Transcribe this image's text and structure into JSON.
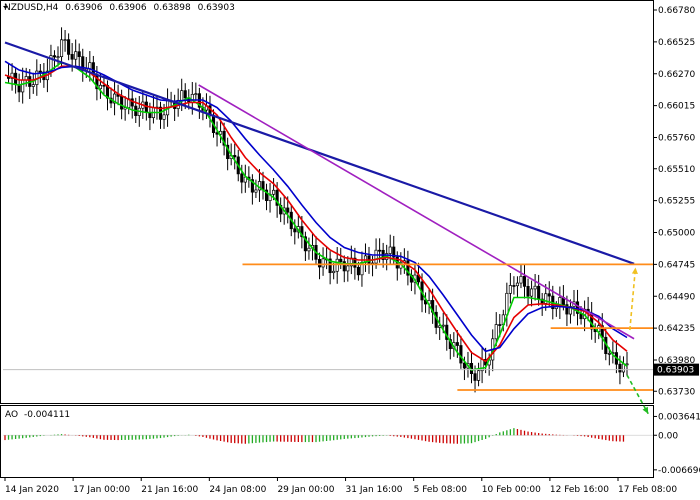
{
  "header": {
    "symbol_tf": "NZDUSD,H4",
    "open": "0.63906",
    "high": "0.63906",
    "low": "0.63898",
    "close": "0.63903"
  },
  "ao_header": {
    "name": "AO",
    "value": "-0.004111"
  },
  "chart_data": [
    {
      "type": "candlestick",
      "title": "NZDUSD,H4",
      "x_ticks": [
        "14 Jan 2020",
        "17 Jan 00:00",
        "21 Jan 16:00",
        "24 Jan 08:00",
        "29 Jan 00:00",
        "31 Jan 16:00",
        "5 Feb 08:00",
        "10 Feb 00:00",
        "12 Feb 16:00",
        "17 Feb 08:00"
      ],
      "y_ticks": [
        "0.66780",
        "0.66525",
        "0.66270",
        "0.66015",
        "0.65760",
        "0.65510",
        "0.65255",
        "0.65000",
        "0.64745",
        "0.64490",
        "0.64235",
        "0.63980",
        "0.63730"
      ],
      "ylim": [
        0.6366,
        0.6682
      ],
      "current_price": "0.63903",
      "price_path": [
        0.6625,
        0.6618,
        0.6622,
        0.663,
        0.6652,
        0.664,
        0.663,
        0.6612,
        0.6605,
        0.66,
        0.6598,
        0.6595,
        0.6605,
        0.661,
        0.6602,
        0.658,
        0.656,
        0.654,
        0.6535,
        0.6528,
        0.6512,
        0.6495,
        0.648,
        0.6472,
        0.6475,
        0.6472,
        0.648,
        0.6485,
        0.6475,
        0.6462,
        0.644,
        0.642,
        0.6405,
        0.6385,
        0.6395,
        0.643,
        0.6463,
        0.6455,
        0.6448,
        0.6443,
        0.644,
        0.6435,
        0.642,
        0.6398,
        0.639
      ],
      "series": [
        {
          "kind": "ma",
          "color": "#00cc00",
          "values": [
            0.662,
            0.6618,
            0.6621,
            0.6628,
            0.6636,
            0.6632,
            0.6624,
            0.661,
            0.6603,
            0.6598,
            0.6596,
            0.6596,
            0.6602,
            0.6608,
            0.66,
            0.6582,
            0.6562,
            0.6545,
            0.6536,
            0.6528,
            0.6514,
            0.6498,
            0.6484,
            0.6477,
            0.6475,
            0.6475,
            0.6478,
            0.6481,
            0.6475,
            0.6462,
            0.6442,
            0.6422,
            0.6404,
            0.639,
            0.6392,
            0.6418,
            0.6448,
            0.6448,
            0.6446,
            0.6443,
            0.644,
            0.6434,
            0.642,
            0.6402,
            0.6393
          ]
        },
        {
          "kind": "ma",
          "color": "#e60000",
          "values": [
            0.6626,
            0.6622,
            0.6622,
            0.6626,
            0.6633,
            0.6633,
            0.6628,
            0.6619,
            0.6611,
            0.6605,
            0.6601,
            0.6599,
            0.6601,
            0.6604,
            0.6604,
            0.6594,
            0.6576,
            0.656,
            0.6548,
            0.6539,
            0.6526,
            0.651,
            0.6496,
            0.6486,
            0.648,
            0.6478,
            0.6478,
            0.648,
            0.6478,
            0.647,
            0.6455,
            0.6437,
            0.642,
            0.6404,
            0.6397,
            0.641,
            0.6432,
            0.6442,
            0.6443,
            0.6442,
            0.644,
            0.6437,
            0.6428,
            0.6414,
            0.6405
          ]
        },
        {
          "kind": "ma",
          "color": "#0000cc",
          "values": [
            0.6637,
            0.663,
            0.6627,
            0.6628,
            0.6632,
            0.6633,
            0.6631,
            0.6626,
            0.662,
            0.6614,
            0.661,
            0.6606,
            0.6605,
            0.6606,
            0.6606,
            0.66,
            0.6589,
            0.6575,
            0.6562,
            0.655,
            0.6537,
            0.6522,
            0.6508,
            0.6496,
            0.6488,
            0.6484,
            0.6482,
            0.6482,
            0.6481,
            0.6476,
            0.6465,
            0.645,
            0.6434,
            0.6418,
            0.6405,
            0.6408,
            0.6423,
            0.6435,
            0.644,
            0.6441,
            0.644,
            0.6438,
            0.6433,
            0.6423,
            0.6416
          ]
        }
      ],
      "trendlines": [
        {
          "color": "#1a1aa6",
          "from": [
            0,
            0.6652
          ],
          "to": [
            44.5,
            0.6475
          ]
        },
        {
          "color": "#a020c0",
          "from": [
            13.7,
            0.6618
          ],
          "to": [
            44.5,
            0.6415
          ]
        }
      ],
      "levels": [
        {
          "color": "#ff8c1a",
          "value": 0.64745,
          "from": 16.8,
          "to": 44.5
        },
        {
          "color": "#ff8c1a",
          "value": 0.64235,
          "from": 38.6,
          "to": 44.5
        },
        {
          "color": "#ff8c1a",
          "value": 0.6374,
          "from": 32.0,
          "to": 44.5
        }
      ],
      "projections": [
        {
          "color": "#f0c020",
          "from": [
            44.2,
            0.6422
          ],
          "to": [
            44.6,
            0.6472
          ]
        },
        {
          "color": "#22bb22",
          "from": [
            44.0,
            0.6386
          ],
          "to": [
            45.5,
            0.6355
          ]
        }
      ]
    },
    {
      "type": "histogram",
      "title": "AO",
      "value_label": "-0.004111",
      "y_ticks": [
        "0.003641",
        "0.00",
        "-0.006696"
      ],
      "ylim": [
        -0.0075,
        0.0045
      ],
      "up_color": "#22aa22",
      "down_color": "#cc0000"
    }
  ]
}
